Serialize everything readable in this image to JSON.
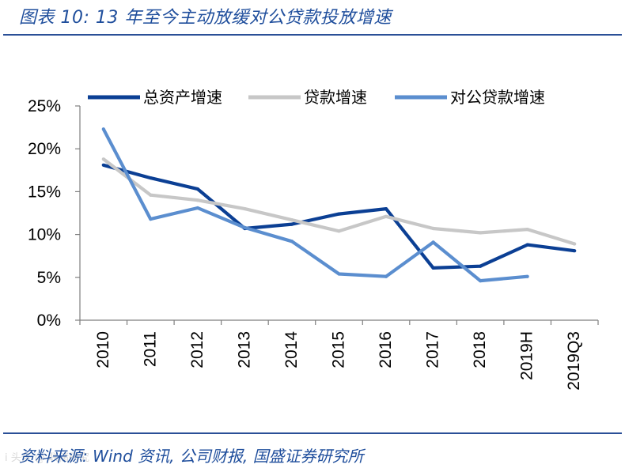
{
  "header": {
    "title": "图表 10:  13 年至今主动放缓对公贷款投放增速"
  },
  "footer": {
    "source": "资料来源: Wind 资讯, 公司财报, 国盛证券研究所",
    "watermark": "i 头条 @ 联储研究"
  },
  "chart_data": {
    "type": "line",
    "title": "13 年至今主动放缓对公贷款投放增速",
    "categories": [
      "2010",
      "2011",
      "2012",
      "2013",
      "2014",
      "2015",
      "2016",
      "2017",
      "2018",
      "2019H",
      "2019Q3"
    ],
    "ylim": [
      0,
      25
    ],
    "yticks": [
      0,
      5,
      10,
      15,
      20,
      25
    ],
    "ytick_labels": [
      "0%",
      "5%",
      "10%",
      "15%",
      "20%",
      "25%"
    ],
    "legend_position": "top",
    "series": [
      {
        "name": "总资产增速",
        "color": "#0b3f94",
        "values": [
          18.1,
          16.6,
          15.3,
          10.7,
          11.2,
          12.4,
          13.0,
          6.1,
          6.3,
          8.8,
          8.1
        ]
      },
      {
        "name": "贷款增速",
        "color": "#c7c7c7",
        "values": [
          18.8,
          14.6,
          14.0,
          13.0,
          11.7,
          10.4,
          12.1,
          10.7,
          10.2,
          10.6,
          8.9
        ]
      },
      {
        "name": "对公贷款增速",
        "color": "#5b8ecf",
        "values": [
          22.3,
          11.8,
          13.1,
          10.8,
          9.2,
          5.4,
          5.1,
          9.1,
          4.6,
          5.1,
          null
        ]
      }
    ]
  }
}
